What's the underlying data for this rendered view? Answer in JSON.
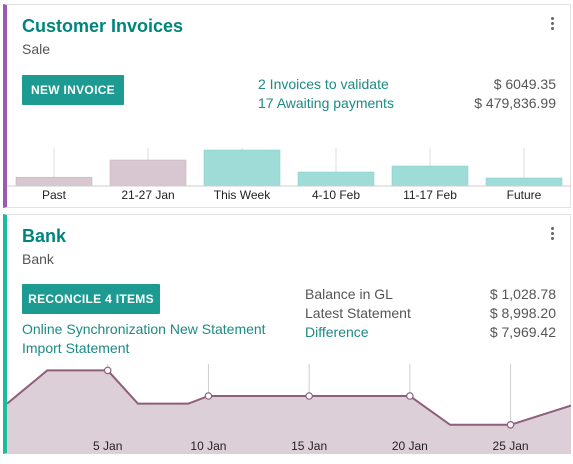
{
  "invoices": {
    "title": "Customer Invoices",
    "subtitle": "Sale",
    "new_button": "NEW INVOICE",
    "stats": [
      {
        "label": "2 Invoices to validate",
        "amount": "$ 6049.35"
      },
      {
        "label": "17 Awaiting payments",
        "amount": "$ 479,836.99"
      }
    ],
    "chart_data": {
      "type": "bar",
      "categories": [
        "Past",
        "21-27 Jan",
        "This Week",
        "4-10 Feb",
        "11-17 Feb",
        "Future"
      ],
      "values": [
        0.22,
        0.65,
        0.9,
        0.35,
        0.5,
        0.2
      ],
      "colors": [
        "#d8c6d0",
        "#d8c6d0",
        "#9fdcd7",
        "#9fdcd7",
        "#9fdcd7",
        "#9fdcd7"
      ],
      "grid": false
    }
  },
  "bank": {
    "title": "Bank",
    "subtitle": "Bank",
    "reconcile_button": "RECONCILE 4 ITEMS",
    "links": [
      "Online Synchronization New Statement",
      "Import Statement"
    ],
    "balances": [
      {
        "label": "Balance in GL",
        "amount": "$ 1,028.78",
        "highlight": false
      },
      {
        "label": "Latest Statement",
        "amount": "$ 8,998.20",
        "highlight": false
      },
      {
        "label": "Difference",
        "amount": "$ 7,969.42",
        "highlight": true
      }
    ],
    "chart_data": {
      "type": "area",
      "x_labels": [
        "5 Jan",
        "10 Jan",
        "15 Jan",
        "20 Jan",
        "25 Jan"
      ],
      "points": [
        {
          "x": 0,
          "y": 0.38
        },
        {
          "x": 2,
          "y": 0.9
        },
        {
          "x": 5,
          "y": 0.9
        },
        {
          "x": 6.5,
          "y": 0.38
        },
        {
          "x": 9,
          "y": 0.38
        },
        {
          "x": 10,
          "y": 0.5
        },
        {
          "x": 14,
          "y": 0.5
        },
        {
          "x": 15,
          "y": 0.5
        },
        {
          "x": 19,
          "y": 0.5
        },
        {
          "x": 20,
          "y": 0.5
        },
        {
          "x": 22,
          "y": 0.05
        },
        {
          "x": 25,
          "y": 0.05
        },
        {
          "x": 28,
          "y": 0.35
        }
      ],
      "markers": [
        5,
        10,
        15,
        20,
        25
      ],
      "fill": "#ddcfd8",
      "stroke": "#8e5e7b"
    }
  }
}
